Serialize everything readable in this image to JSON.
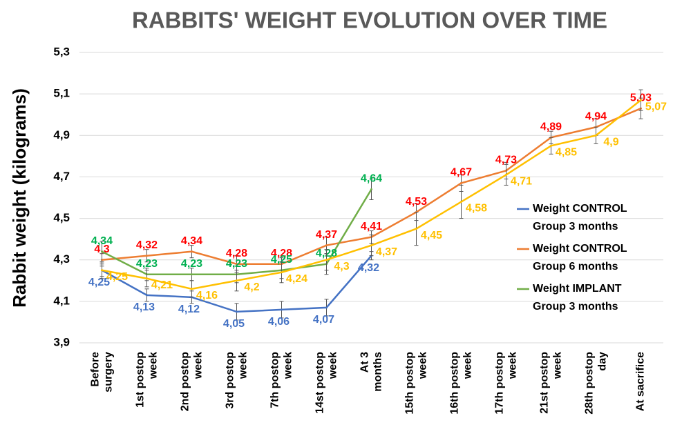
{
  "chart_data": {
    "type": "line",
    "title": "RABBITS' WEIGHT EVOLUTION OVER TIME",
    "y_label": "Rabbit weight (kilograms)",
    "categories": [
      "Before surgery",
      "1st postop week",
      "2nd postop week",
      "3rd postop week",
      "7th postop week",
      "14st postop week",
      "At 3 months",
      "15th postop week",
      "16th postop week",
      "17th postop week",
      "21st postop week",
      "28th postop day",
      "At sacrifice"
    ],
    "ylim": [
      3.9,
      5.3
    ],
    "yticks": [
      {
        "value": 3.9,
        "label": "3,9"
      },
      {
        "value": 4.1,
        "label": "4,1"
      },
      {
        "value": 4.3,
        "label": "4,3"
      },
      {
        "value": 4.5,
        "label": "4,5"
      },
      {
        "value": 4.7,
        "label": "4,7"
      },
      {
        "value": 4.9,
        "label": "4,9"
      },
      {
        "value": 5.1,
        "label": "5,1"
      },
      {
        "value": 5.3,
        "label": "5,3"
      }
    ],
    "grid": true,
    "legend": "right",
    "series": [
      {
        "name": "Weight CONTROL Group 3 months",
        "color": "#4472c4",
        "label_color": "#4472c4",
        "values": [
          4.25,
          4.13,
          4.12,
          4.05,
          4.06,
          4.07,
          4.32,
          null,
          null,
          null,
          null,
          null,
          null
        ],
        "value_labels": [
          "4,25",
          "4,13",
          "4,12",
          "4,05",
          "4,06",
          "4,07",
          "4,32",
          null,
          null,
          null,
          null,
          null,
          null
        ],
        "errors": [
          0.03,
          0.03,
          0.03,
          0.04,
          0.04,
          0.04,
          0.02,
          null,
          null,
          null,
          null,
          null,
          null
        ]
      },
      {
        "name": "Weight CONTROL Group 6 months",
        "color": "#ed7d31",
        "label_color": "#ff0000",
        "values": [
          4.3,
          4.32,
          4.34,
          4.28,
          4.28,
          4.37,
          4.41,
          4.53,
          4.67,
          4.73,
          4.89,
          4.94,
          5.03
        ],
        "value_labels": [
          "4,3",
          "4,32",
          "4,34",
          "4,28",
          "4,28",
          "4,37",
          "4,41",
          "4,53",
          "4,67",
          "4,73",
          "4,89",
          "4,94",
          "5,03"
        ],
        "errors": [
          0.03,
          0.03,
          0.03,
          0.04,
          0.03,
          0.04,
          0.03,
          0.04,
          0.04,
          0.04,
          0.03,
          0.04,
          0.05
        ]
      },
      {
        "name": "Weight IMPLANT Group 3 months",
        "color": "#70ad47",
        "label_color": "#00b050",
        "values": [
          4.34,
          4.23,
          4.23,
          4.23,
          4.25,
          4.28,
          4.64,
          null,
          null,
          null,
          null,
          null,
          null
        ],
        "value_labels": [
          "4,34",
          "4,23",
          "4,23",
          "4,23",
          "4,25",
          "4,28",
          "4,64",
          null,
          null,
          null,
          null,
          null,
          null
        ],
        "errors": [
          0.05,
          0.03,
          0.03,
          0.04,
          0.04,
          0.05,
          0.05,
          null,
          null,
          null,
          null,
          null,
          null
        ]
      },
      {
        "color": "#ffc000",
        "label_color": "#ffc000",
        "values": [
          4.25,
          4.21,
          4.16,
          4.2,
          4.24,
          4.3,
          4.37,
          4.45,
          4.58,
          4.71,
          4.85,
          4.9,
          5.07
        ],
        "value_labels": [
          "4,25",
          "4,21",
          "4,16",
          "4,2",
          "4,24",
          "4,3",
          "4,37",
          "4,45",
          "4,58",
          "4,71",
          "4,85",
          "4,9",
          "5,07"
        ],
        "errors": [
          0.04,
          0.04,
          0.04,
          0.05,
          0.05,
          0.05,
          0.05,
          0.08,
          0.08,
          0.05,
          0.04,
          0.04,
          0.05
        ]
      }
    ]
  }
}
